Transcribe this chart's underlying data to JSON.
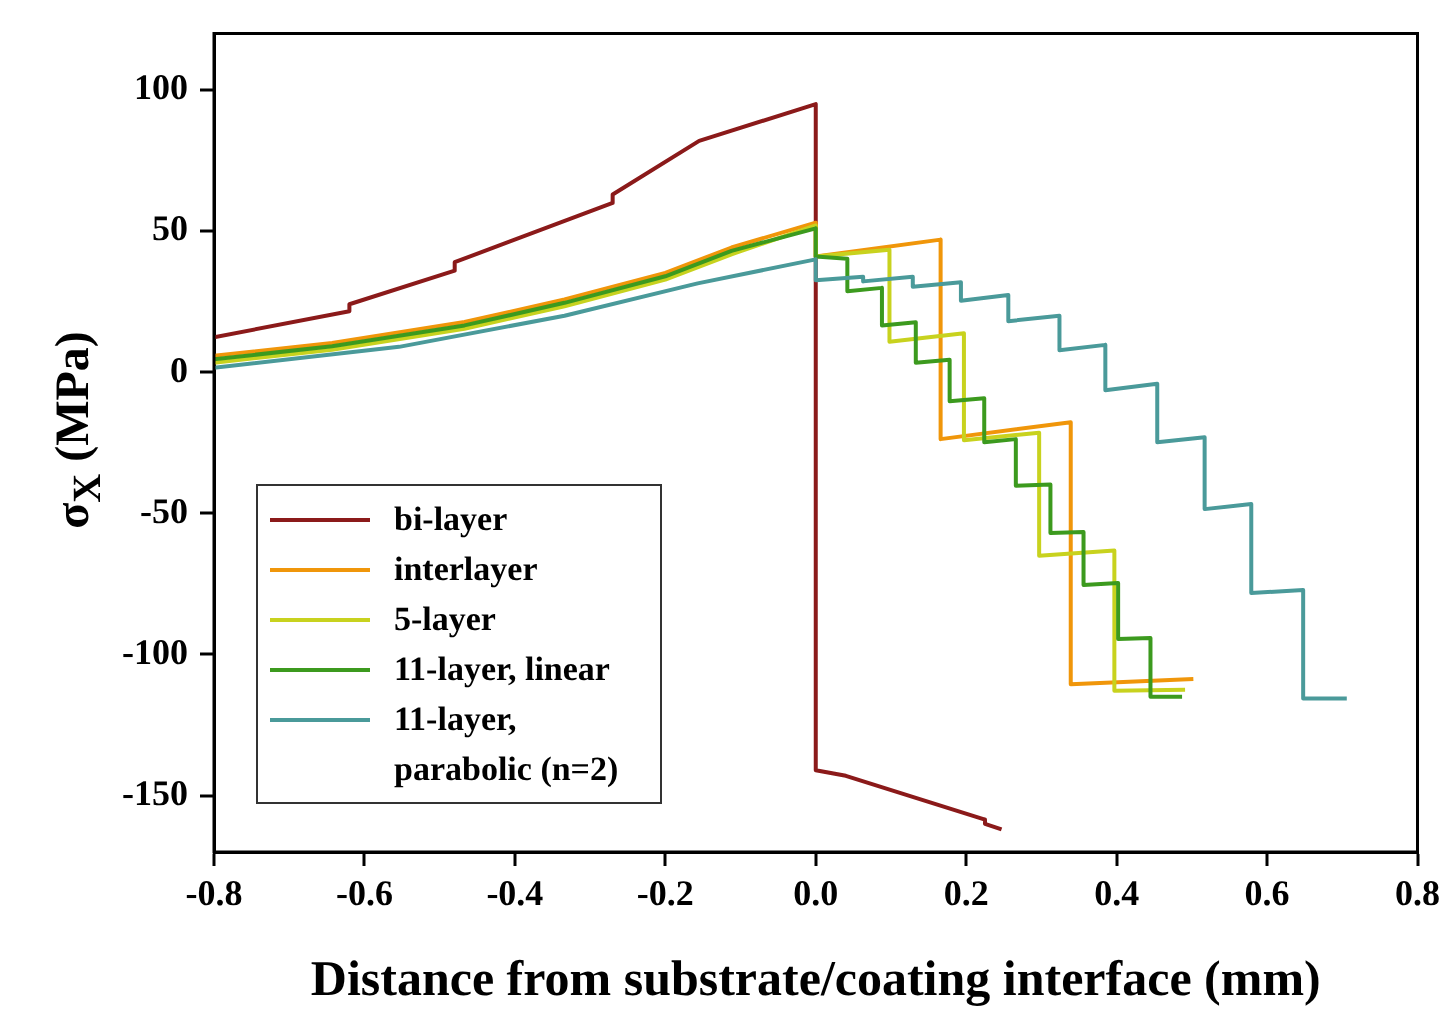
{
  "chart_data": {
    "type": "line",
    "xlabel": "Distance from substrate/coating interface (mm)",
    "ylabel": "σ$_{X}$ (MPa)",
    "xlim": [
      -0.8,
      0.8
    ],
    "xticks": [
      {
        "value": -0.8,
        "label": "-0.8"
      },
      {
        "value": -0.6,
        "label": "-0.6"
      },
      {
        "value": -0.4,
        "label": "-0.4"
      },
      {
        "value": -0.2,
        "label": "-0.2"
      },
      {
        "value": 0,
        "label": "0.0"
      },
      {
        "value": 0.2,
        "label": "0.2"
      },
      {
        "value": 0.4,
        "label": "0.4"
      },
      {
        "value": 0.6,
        "label": "0.6"
      },
      {
        "value": 0.8,
        "label": "0.8"
      }
    ],
    "ylim": [
      -170,
      120
    ],
    "yticks": [
      -150,
      -100,
      -50,
      0,
      50,
      100
    ],
    "legend": "bottom left",
    "marker": "none",
    "line_style": "solid",
    "series": [
      {
        "name": "bi-layer",
        "color": "#8b1a1a",
        "x": [
          -0.8,
          -0.62,
          -0.62,
          -0.48,
          -0.48,
          -0.27,
          -0.27,
          -0.155,
          0,
          0,
          0.04,
          0.225,
          0.225,
          0.247
        ],
        "values": [
          12.4,
          21.6,
          24.1,
          36,
          39,
          60,
          63,
          82,
          95,
          -141,
          -143,
          -158.5,
          -160,
          -162
        ]
      },
      {
        "name": "interlayer",
        "color": "#f0960a",
        "x": [
          -0.8,
          -0.643,
          -0.467,
          -0.334,
          -0.2,
          -0.112,
          0,
          0,
          0.166,
          0.166,
          0.339,
          0.339,
          0.502
        ],
        "values": [
          5.8,
          10.4,
          17.8,
          25.8,
          35.2,
          44.2,
          53,
          41,
          47,
          -23.7,
          -17.7,
          -110.6,
          -108.7
        ]
      },
      {
        "name": "5-layer",
        "color": "#c8d21e",
        "x": [
          -0.8,
          -0.643,
          -0.467,
          -0.334,
          -0.2,
          -0.112,
          0,
          0,
          0.098,
          0.098,
          0.197,
          0.197,
          0.297,
          0.297,
          0.397,
          0.397,
          0.491
        ],
        "values": [
          3.4,
          8,
          15.4,
          23.4,
          32.8,
          41.8,
          52,
          41,
          43.4,
          10.8,
          13.8,
          -24.1,
          -21.4,
          -65,
          -63.2,
          -112.9,
          -112.5
        ]
      },
      {
        "name": "11-layer, linear",
        "color": "#3c9a1e",
        "x": [
          -0.8,
          -0.643,
          -0.467,
          -0.334,
          -0.2,
          -0.112,
          0,
          0,
          0.042,
          0.042,
          0.088,
          0.088,
          0.133,
          0.133,
          0.178,
          0.178,
          0.224,
          0.224,
          0.266,
          0.266,
          0.312,
          0.312,
          0.356,
          0.356,
          0.402,
          0.402,
          0.445,
          0.445,
          0.487
        ],
        "values": [
          4.6,
          9.2,
          16.6,
          24.6,
          34,
          43,
          51,
          41,
          40.2,
          28.7,
          29.9,
          16.6,
          17.7,
          3.4,
          4.4,
          -10.3,
          -9.2,
          -24.8,
          -23.7,
          -40.2,
          -39.8,
          -57,
          -56.6,
          -75.4,
          -74.7,
          -94.5,
          -94.2,
          -115,
          -115
        ]
      },
      {
        "name": "11-layer, parabolic (n=2)",
        "color": "#4a9a9a",
        "x": [
          -0.8,
          -0.554,
          -0.334,
          -0.157,
          0,
          0,
          0.063,
          0.063,
          0.129,
          0.129,
          0.193,
          0.193,
          0.256,
          0.256,
          0.324,
          0.324,
          0.385,
          0.385,
          0.454,
          0.454,
          0.517,
          0.517,
          0.579,
          0.579,
          0.648,
          0.648,
          0.706
        ],
        "values": [
          1.6,
          9,
          20,
          31.5,
          40,
          32.6,
          33.8,
          32.2,
          33.8,
          30.3,
          31.9,
          25.3,
          27.4,
          18.1,
          20,
          7.8,
          9.7,
          -6.4,
          -4.1,
          -24.8,
          -23,
          -48.5,
          -46.7,
          -78.2,
          -77.2,
          -115.6,
          -115.6
        ]
      }
    ]
  }
}
